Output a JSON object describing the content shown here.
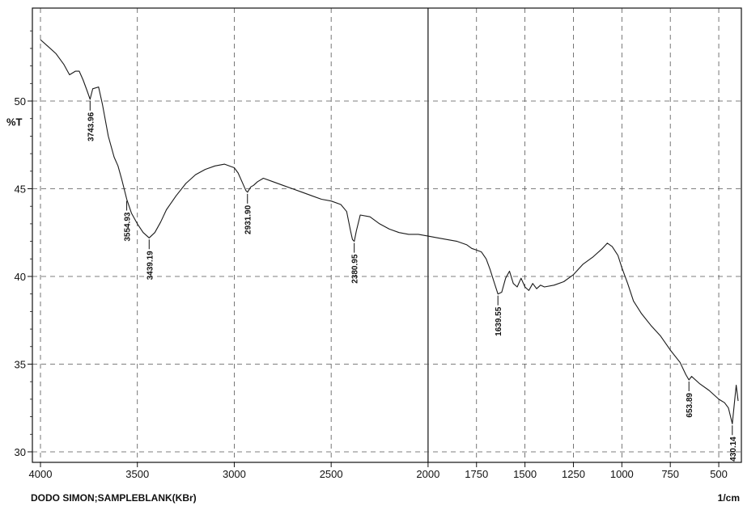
{
  "chart_data": {
    "type": "line",
    "ylabel": "%T",
    "x_unit_label": "1/cm",
    "footer_text": "DODO SIMON;SAMPLEBLANK(KBr)",
    "xlim": [
      4000,
      400
    ],
    "ylim": [
      29.4,
      55.3
    ],
    "x_ticks": [
      4000,
      3500,
      3000,
      2500,
      2000,
      1750,
      1500,
      1250,
      1000,
      750,
      500
    ],
    "x_tick_labels": [
      "4000",
      "3500",
      "3000",
      "2500",
      "2000",
      "1750",
      "1500",
      "1250",
      "1000",
      "750",
      "500"
    ],
    "y_ticks": [
      30,
      35,
      40,
      45,
      50
    ],
    "y_tick_labels": [
      "30",
      "35",
      "40",
      "45",
      "50"
    ],
    "grid": true,
    "series": [
      {
        "x": [
          4000,
          3960,
          3920,
          3880,
          3850,
          3820,
          3800,
          3780,
          3760,
          3743.96,
          3730,
          3700,
          3680,
          3650,
          3620,
          3600,
          3580,
          3554.93,
          3530,
          3500,
          3470,
          3439.19,
          3410,
          3380,
          3350,
          3300,
          3250,
          3200,
          3150,
          3100,
          3050,
          3000,
          2980,
          2960,
          2940,
          2931.9,
          2915,
          2900,
          2880,
          2850,
          2800,
          2750,
          2700,
          2650,
          2600,
          2550,
          2500,
          2450,
          2420,
          2400,
          2390,
          2380.95,
          2370,
          2350,
          2300,
          2250,
          2200,
          2150,
          2100,
          2050,
          2000,
          1950,
          1900,
          1850,
          1800,
          1775,
          1750,
          1725,
          1700,
          1680,
          1660,
          1639.55,
          1620,
          1600,
          1580,
          1560,
          1540,
          1520,
          1500,
          1480,
          1460,
          1440,
          1420,
          1400,
          1350,
          1300,
          1250,
          1200,
          1150,
          1100,
          1075,
          1050,
          1020,
          1000,
          970,
          940,
          900,
          850,
          800,
          750,
          700,
          670,
          653.89,
          640,
          600,
          550,
          500,
          470,
          450,
          430.14,
          420,
          410,
          400
        ],
        "y": [
          53.5,
          53.1,
          52.7,
          52.1,
          51.5,
          51.7,
          51.7,
          51.2,
          50.6,
          50.1,
          50.7,
          50.8,
          49.8,
          48.0,
          46.8,
          46.3,
          45.5,
          44.4,
          43.6,
          43.0,
          42.5,
          42.2,
          42.5,
          43.1,
          43.8,
          44.6,
          45.3,
          45.8,
          46.1,
          46.3,
          46.4,
          46.2,
          45.9,
          45.4,
          44.9,
          44.8,
          45.1,
          45.2,
          45.4,
          45.6,
          45.4,
          45.2,
          45.0,
          44.8,
          44.6,
          44.4,
          44.3,
          44.1,
          43.7,
          42.6,
          42.1,
          42.0,
          42.6,
          43.5,
          43.4,
          43.0,
          42.7,
          42.5,
          42.4,
          42.4,
          42.3,
          42.2,
          42.1,
          42.0,
          41.8,
          41.6,
          41.5,
          41.4,
          41.0,
          40.4,
          39.7,
          39.0,
          39.1,
          39.9,
          40.3,
          39.6,
          39.4,
          39.9,
          39.4,
          39.2,
          39.6,
          39.3,
          39.5,
          39.4,
          39.5,
          39.7,
          40.1,
          40.7,
          41.1,
          41.6,
          41.9,
          41.7,
          41.2,
          40.5,
          39.6,
          38.6,
          37.9,
          37.2,
          36.6,
          35.8,
          35.1,
          34.4,
          34.1,
          34.3,
          33.9,
          33.5,
          33.0,
          32.8,
          32.5,
          31.6,
          32.7,
          33.8,
          32.9
        ]
      }
    ],
    "peak_labels": [
      {
        "x": 3743.96,
        "y": 50.1,
        "label": "3743.96"
      },
      {
        "x": 3554.93,
        "y": 44.4,
        "label": "3554.93"
      },
      {
        "x": 3439.19,
        "y": 42.2,
        "label": "3439.19"
      },
      {
        "x": 2931.9,
        "y": 44.8,
        "label": "2931.90"
      },
      {
        "x": 2380.95,
        "y": 42.0,
        "label": "2380.95"
      },
      {
        "x": 1639.55,
        "y": 39.0,
        "label": "1639.55"
      },
      {
        "x": 653.89,
        "y": 34.1,
        "label": "653.89"
      },
      {
        "x": 430.14,
        "y": 31.6,
        "label": "430.14"
      }
    ]
  }
}
